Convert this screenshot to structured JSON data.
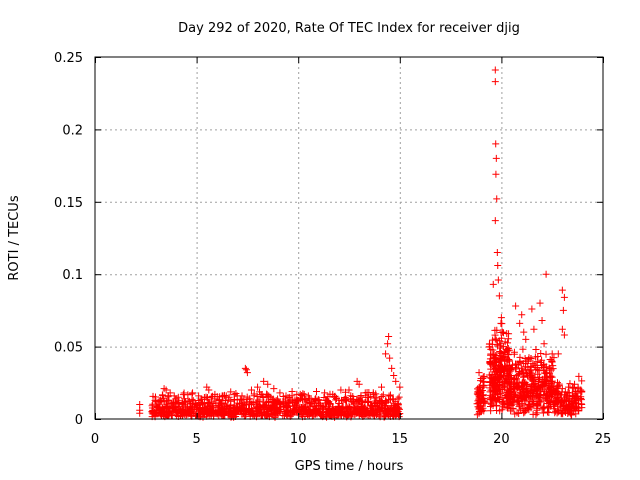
{
  "chart_data": {
    "type": "scatter",
    "title": "Day 292 of 2020, Rate Of TEC Index for receiver djig",
    "xlabel": "GPS time / hours",
    "ylabel": "ROTI / TECUs",
    "xlim": [
      0,
      25
    ],
    "ylim": [
      0,
      0.25
    ],
    "xticks": [
      0,
      5,
      10,
      15,
      20,
      25
    ],
    "xtick_labels": [
      "0",
      "5",
      "10",
      "15",
      "20",
      "25"
    ],
    "yticks": [
      0,
      0.05,
      0.1,
      0.15,
      0.2,
      0.25
    ],
    "ytick_labels": [
      "0",
      "0.05",
      "0.1",
      "0.15",
      "0.2",
      "0.25"
    ],
    "grid": true,
    "marker": "plus",
    "color": "#ff0000",
    "series": [
      {
        "name": "ROTI",
        "points": [
          [
            2.2,
            0.01
          ],
          [
            2.2,
            0.006
          ],
          [
            2.2,
            0.004
          ],
          [
            3.0,
            0.012
          ],
          [
            3.2,
            0.008
          ],
          [
            3.4,
            0.021
          ],
          [
            3.5,
            0.02
          ],
          [
            3.7,
            0.018
          ],
          [
            3.9,
            0.016
          ],
          [
            4.1,
            0.015
          ],
          [
            4.4,
            0.014
          ],
          [
            4.8,
            0.018
          ],
          [
            5.1,
            0.016
          ],
          [
            5.5,
            0.022
          ],
          [
            5.6,
            0.02
          ],
          [
            5.9,
            0.017
          ],
          [
            6.3,
            0.016
          ],
          [
            6.6,
            0.015
          ],
          [
            7.0,
            0.016
          ],
          [
            7.4,
            0.035
          ],
          [
            7.45,
            0.034
          ],
          [
            7.5,
            0.032
          ],
          [
            7.7,
            0.02
          ],
          [
            8.0,
            0.022
          ],
          [
            8.3,
            0.026
          ],
          [
            8.5,
            0.024
          ],
          [
            8.8,
            0.021
          ],
          [
            9.1,
            0.018
          ],
          [
            9.4,
            0.016
          ],
          [
            9.7,
            0.019
          ],
          [
            10.1,
            0.017
          ],
          [
            10.5,
            0.016
          ],
          [
            10.9,
            0.019
          ],
          [
            11.3,
            0.018
          ],
          [
            11.7,
            0.017
          ],
          [
            12.1,
            0.02
          ],
          [
            12.5,
            0.02
          ],
          [
            12.9,
            0.026
          ],
          [
            13.0,
            0.024
          ],
          [
            13.3,
            0.018
          ],
          [
            13.7,
            0.017
          ],
          [
            14.1,
            0.022
          ],
          [
            14.3,
            0.045
          ],
          [
            14.4,
            0.052
          ],
          [
            14.45,
            0.057
          ],
          [
            14.5,
            0.042
          ],
          [
            14.6,
            0.035
          ],
          [
            14.7,
            0.03
          ],
          [
            14.8,
            0.026
          ],
          [
            15.0,
            0.022
          ],
          [
            18.9,
            0.032
          ],
          [
            19.0,
            0.028
          ],
          [
            19.1,
            0.022
          ],
          [
            19.6,
            0.093
          ],
          [
            19.7,
            0.241
          ],
          [
            19.7,
            0.233
          ],
          [
            19.72,
            0.19
          ],
          [
            19.75,
            0.18
          ],
          [
            19.73,
            0.169
          ],
          [
            19.77,
            0.152
          ],
          [
            19.7,
            0.137
          ],
          [
            19.8,
            0.115
          ],
          [
            19.82,
            0.106
          ],
          [
            19.85,
            0.096
          ],
          [
            19.9,
            0.085
          ],
          [
            20.0,
            0.07
          ],
          [
            20.05,
            0.06
          ],
          [
            20.1,
            0.05
          ],
          [
            20.4,
            0.04
          ],
          [
            20.7,
            0.078
          ],
          [
            20.9,
            0.066
          ],
          [
            21.0,
            0.072
          ],
          [
            21.1,
            0.06
          ],
          [
            21.2,
            0.055
          ],
          [
            21.5,
            0.076
          ],
          [
            21.6,
            0.062
          ],
          [
            21.7,
            0.048
          ],
          [
            21.9,
            0.08
          ],
          [
            22.0,
            0.068
          ],
          [
            22.1,
            0.052
          ],
          [
            22.2,
            0.1
          ],
          [
            22.5,
            0.045
          ],
          [
            22.8,
            0.045
          ],
          [
            23.0,
            0.089
          ],
          [
            23.1,
            0.084
          ],
          [
            23.05,
            0.075
          ],
          [
            23.0,
            0.062
          ],
          [
            23.1,
            0.058
          ],
          [
            23.3,
            0.022
          ],
          [
            23.6,
            0.024
          ],
          [
            23.9,
            0.02
          ]
        ],
        "dense_bands": [
          {
            "x_range": [
              2.8,
              15.0
            ],
            "y_range": [
              0.001,
              0.013
            ],
            "count": 900
          },
          {
            "x_range": [
              2.8,
              15.0
            ],
            "y_range": [
              0.01,
              0.019
            ],
            "count": 220
          },
          {
            "x_range": [
              18.8,
              19.2
            ],
            "y_range": [
              0.002,
              0.032
            ],
            "count": 70
          },
          {
            "x_range": [
              19.4,
              20.4
            ],
            "y_range": [
              0.005,
              0.068
            ],
            "count": 260
          },
          {
            "x_range": [
              20.4,
              22.6
            ],
            "y_range": [
              0.003,
              0.05
            ],
            "count": 380
          },
          {
            "x_range": [
              22.6,
              24.0
            ],
            "y_range": [
              0.002,
              0.03
            ],
            "count": 140
          }
        ]
      }
    ]
  }
}
